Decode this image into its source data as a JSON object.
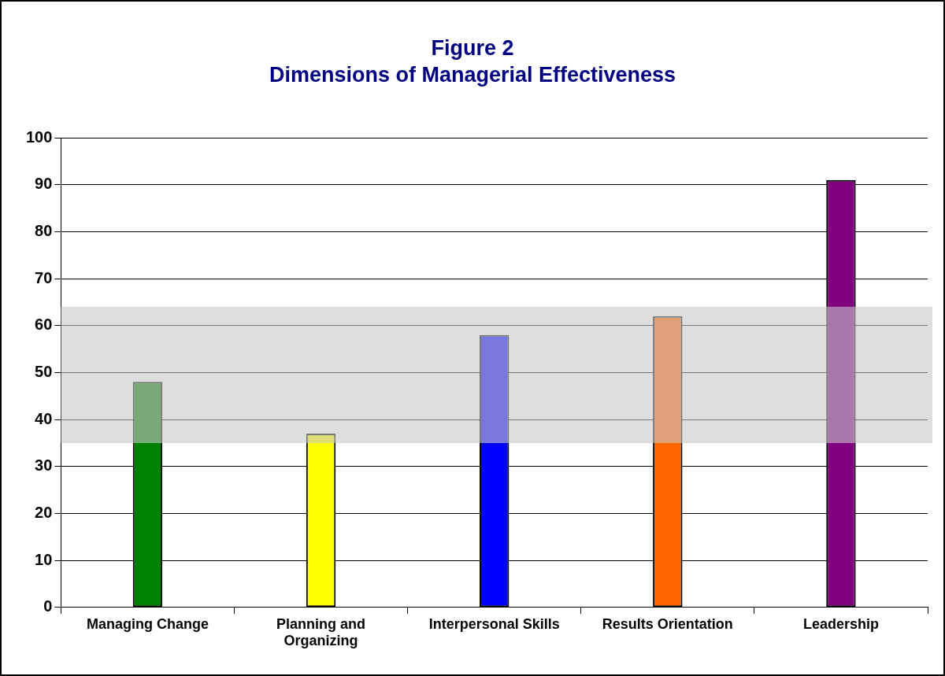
{
  "chart_data": {
    "type": "bar",
    "title": "Figure 2",
    "subtitle": "Dimensions of Managerial Effectiveness",
    "categories": [
      "Managing Change",
      "Planning and Organizing",
      "Interpersonal Skills",
      "Results Orientation",
      "Leadership"
    ],
    "values": [
      48,
      37,
      58,
      62,
      91
    ],
    "colors": [
      "#008000",
      "#ffff00",
      "#0000ff",
      "#ff6600",
      "#800080"
    ],
    "ylim": [
      0,
      100
    ],
    "yticks": [
      0,
      10,
      20,
      30,
      40,
      50,
      60,
      70,
      80,
      90,
      100
    ],
    "grid": "y",
    "bands": [
      {
        "axis": "y",
        "from": 35,
        "to": 64,
        "color": "#c8c8c8"
      }
    ]
  }
}
